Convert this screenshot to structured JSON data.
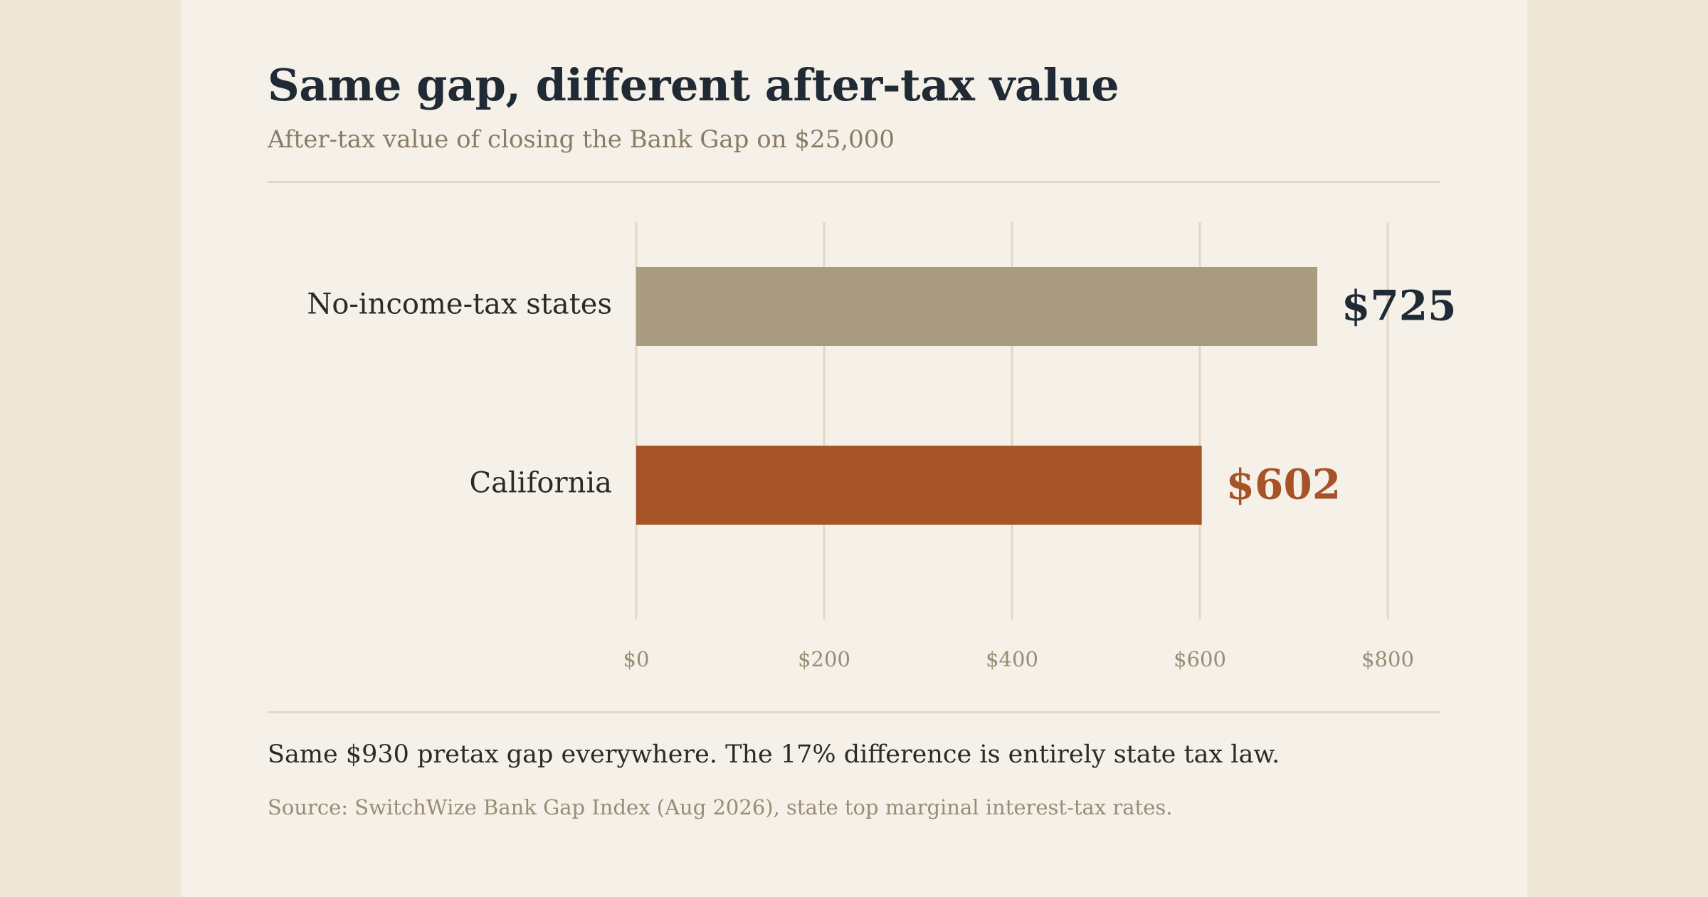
{
  "colors": {
    "background": "#efe8d9",
    "card": "#f5f1e8",
    "title": "#1f2a35",
    "muted": "#9a8b75",
    "grid": "#e1d8c6",
    "accent": "#a65328",
    "neutral_bar": "#a99b80"
  },
  "chart_data": {
    "type": "bar",
    "orientation": "horizontal",
    "title": "Same gap, different after-tax value",
    "subtitle": "After-tax value of closing the Bank Gap on $25,000",
    "categories": [
      "No-income-tax states",
      "California"
    ],
    "values": [
      725,
      602
    ],
    "value_labels": [
      "$725",
      "$602"
    ],
    "bar_colors": [
      "#a99b80",
      "#a65328"
    ],
    "label_colors": [
      "#1f2a35",
      "#a65328"
    ],
    "xlim": [
      0,
      800
    ],
    "x_ticks": [
      0,
      200,
      400,
      600,
      800
    ],
    "x_tick_labels": [
      "$0",
      "$200",
      "$400",
      "$600",
      "$800"
    ],
    "grid": true,
    "legend": "none"
  },
  "footer": {
    "note": "Same $930 pretax gap everywhere. The 17% difference is entirely state tax law.",
    "source": "Source: SwitchWize Bank Gap Index (Aug 2026), state top marginal interest-tax rates."
  }
}
